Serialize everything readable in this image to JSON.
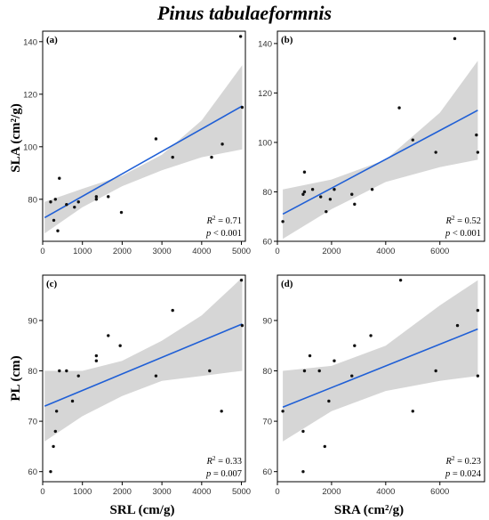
{
  "figure": {
    "title": "Pinus tabulaeformnis",
    "xlabels": [
      "SRL (cm/g)",
      "SRA (cm²/g)"
    ],
    "ylabels": [
      "SLA (cm²/g)",
      "PL (cm)"
    ],
    "colors": {
      "line": "#1f5fd6",
      "band": "#d6d6d6",
      "point": "#111111"
    }
  },
  "chart_data": [
    {
      "type": "scatter",
      "panel": "(a)",
      "xlabel": "SRL (cm/g)",
      "ylabel": "SLA (cm²/g)",
      "xlim": [
        0,
        5100
      ],
      "ylim": [
        64,
        144
      ],
      "xticks": [
        0,
        1000,
        2000,
        3000,
        4000,
        5000
      ],
      "yticks": [
        80,
        100,
        120,
        140
      ],
      "points": [
        [
          200,
          79
        ],
        [
          280,
          72
        ],
        [
          320,
          80
        ],
        [
          380,
          68
        ],
        [
          420,
          88
        ],
        [
          600,
          78
        ],
        [
          800,
          77
        ],
        [
          900,
          79
        ],
        [
          1350,
          80
        ],
        [
          1350,
          81
        ],
        [
          1650,
          81
        ],
        [
          1980,
          75
        ],
        [
          2850,
          103
        ],
        [
          3270,
          96
        ],
        [
          4250,
          96
        ],
        [
          4520,
          101
        ],
        [
          4980,
          142
        ],
        [
          5020,
          115
        ]
      ],
      "fit": {
        "x0": 50,
        "y0": 73,
        "x1": 5020,
        "y1": 115.5,
        "band_x": [
          50,
          1000,
          2000,
          3000,
          4000,
          5020
        ],
        "band_lo": [
          67,
          77,
          85,
          91,
          96,
          99
        ],
        "band_hi": [
          79,
          84,
          89,
          97,
          110,
          131
        ]
      },
      "stats": {
        "r2": "= 0.71",
        "p": "< 0.001"
      },
      "legend": "bottom-right"
    },
    {
      "type": "scatter",
      "panel": "(b)",
      "xlabel": "SRA (cm²/g)",
      "ylabel": "SLA (cm²/g)",
      "xlim": [
        0,
        7650
      ],
      "ylim": [
        60,
        145
      ],
      "xticks": [
        0,
        2000,
        4000,
        6000
      ],
      "yticks": [
        60,
        80,
        100,
        120,
        140
      ],
      "points": [
        [
          200,
          68
        ],
        [
          950,
          79
        ],
        [
          1000,
          80
        ],
        [
          1000,
          88
        ],
        [
          1300,
          81
        ],
        [
          1600,
          78
        ],
        [
          1800,
          72
        ],
        [
          1950,
          77
        ],
        [
          2100,
          81
        ],
        [
          2750,
          79
        ],
        [
          2850,
          75
        ],
        [
          3500,
          81
        ],
        [
          4500,
          114
        ],
        [
          5000,
          101
        ],
        [
          5850,
          96
        ],
        [
          6550,
          142
        ],
        [
          7350,
          103
        ],
        [
          7400,
          96
        ]
      ],
      "fit": {
        "x0": 200,
        "y0": 71,
        "x1": 7400,
        "y1": 113,
        "band_x": [
          200,
          2000,
          4000,
          6000,
          7400
        ],
        "band_lo": [
          61,
          73,
          84,
          90,
          93
        ],
        "band_hi": [
          81,
          85,
          93,
          112,
          133
        ]
      },
      "stats": {
        "r2": "= 0.52",
        "p": "< 0.001"
      },
      "legend": "bottom-right"
    },
    {
      "type": "scatter",
      "panel": "(c)",
      "xlabel": "SRL (cm/g)",
      "ylabel": "PL (cm)",
      "xlim": [
        0,
        5100
      ],
      "ylim": [
        58,
        99
      ],
      "xticks": [
        0,
        1000,
        2000,
        3000,
        4000,
        5000
      ],
      "yticks": [
        60,
        70,
        80,
        90
      ],
      "points": [
        [
          200,
          60
        ],
        [
          270,
          65
        ],
        [
          320,
          68
        ],
        [
          350,
          72
        ],
        [
          420,
          80
        ],
        [
          600,
          80
        ],
        [
          750,
          74
        ],
        [
          900,
          79
        ],
        [
          1350,
          82
        ],
        [
          1350,
          83
        ],
        [
          1650,
          87
        ],
        [
          1950,
          85
        ],
        [
          2850,
          79
        ],
        [
          3270,
          92
        ],
        [
          4200,
          80
        ],
        [
          4500,
          72
        ],
        [
          5000,
          98
        ],
        [
          5020,
          89
        ]
      ],
      "fit": {
        "x0": 50,
        "y0": 73,
        "x1": 5020,
        "y1": 89.3,
        "band_x": [
          50,
          1000,
          2000,
          3000,
          4000,
          5020
        ],
        "band_lo": [
          66,
          71,
          75,
          78,
          79,
          80
        ],
        "band_hi": [
          80,
          80,
          82,
          86,
          91,
          98.5
        ]
      },
      "stats": {
        "r2": "= 0.33",
        "p": "= 0.007"
      },
      "legend": "bottom-right"
    },
    {
      "type": "scatter",
      "panel": "(d)",
      "xlabel": "SRA (cm²/g)",
      "ylabel": "PL (cm)",
      "xlim": [
        0,
        7650
      ],
      "ylim": [
        58,
        99
      ],
      "xticks": [
        0,
        2000,
        4000,
        6000
      ],
      "yticks": [
        60,
        70,
        80,
        90
      ],
      "points": [
        [
          200,
          72
        ],
        [
          950,
          60
        ],
        [
          950,
          68
        ],
        [
          1000,
          80
        ],
        [
          1200,
          83
        ],
        [
          1550,
          80
        ],
        [
          1750,
          65
        ],
        [
          1900,
          74
        ],
        [
          2100,
          82
        ],
        [
          2750,
          79
        ],
        [
          2850,
          85
        ],
        [
          3450,
          87
        ],
        [
          4550,
          98
        ],
        [
          5000,
          72
        ],
        [
          5850,
          80
        ],
        [
          6650,
          89
        ],
        [
          7400,
          92
        ],
        [
          7400,
          79
        ]
      ],
      "fit": {
        "x0": 200,
        "y0": 72.8,
        "x1": 7400,
        "y1": 88.3,
        "band_x": [
          200,
          2000,
          4000,
          6000,
          7400
        ],
        "band_lo": [
          66,
          72,
          76,
          78,
          79
        ],
        "band_hi": [
          80,
          81,
          85,
          93,
          98
        ]
      },
      "stats": {
        "r2": "= 0.23",
        "p": "= 0.024"
      },
      "legend": "bottom-right"
    }
  ]
}
